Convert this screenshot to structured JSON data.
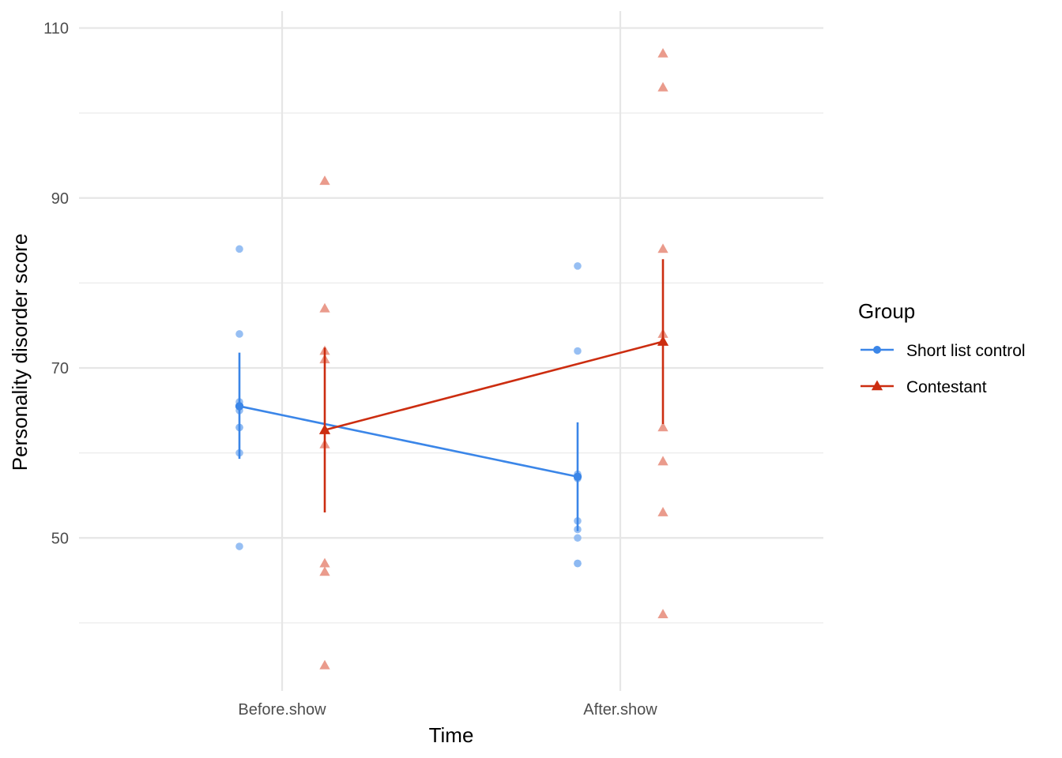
{
  "chart_data": {
    "type": "scatter",
    "xlabel": "Time",
    "ylabel": "Personality disorder score",
    "categories": [
      "Before.show",
      "After.show"
    ],
    "ylim": [
      32,
      112
    ],
    "y_ticks": [
      50,
      70,
      90,
      110
    ],
    "grid": true,
    "legend": {
      "title": "Group",
      "position": "right",
      "entries": [
        "Short list control",
        "Contestant"
      ]
    },
    "series": [
      {
        "name": "Short list control",
        "color": "#3B86E8",
        "point_color": "#8CB8F2",
        "marker": "circle",
        "points": {
          "Before.show": [
            84,
            74,
            66,
            65.5,
            65,
            63,
            63,
            60,
            49
          ],
          "After.show": [
            82,
            72,
            57.5,
            57,
            52,
            51,
            50,
            47,
            47
          ]
        },
        "mean": [
          65.5,
          57.2
        ],
        "error_low": [
          59.3,
          50.8
        ],
        "error_high": [
          71.8,
          63.6
        ]
      },
      {
        "name": "Contestant",
        "color": "#CC2D10",
        "point_color": "#E8907F",
        "marker": "triangle",
        "points": {
          "Before.show": [
            92,
            77,
            72,
            71,
            61,
            47,
            46,
            35
          ],
          "After.show": [
            107,
            103,
            84,
            74,
            63,
            59,
            53,
            41
          ]
        },
        "mean": [
          62.7,
          73.1
        ],
        "error_low": [
          53,
          63.4
        ],
        "error_high": [
          72.4,
          82.8
        ]
      }
    ]
  }
}
